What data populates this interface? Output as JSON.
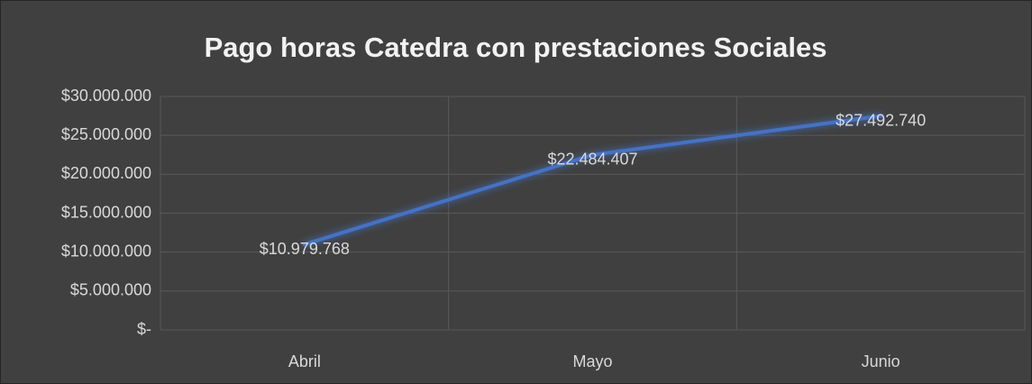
{
  "chart_data": {
    "type": "line",
    "title": "Pago horas Catedra con prestaciones Sociales",
    "categories": [
      "Abril",
      "Mayo",
      "Junio"
    ],
    "values": [
      10979768,
      22484407,
      27492740
    ],
    "value_labels": [
      "$10.979.768",
      "$22.484.407",
      "$27.492.740"
    ],
    "color": "#4472c4",
    "ylim": [
      0,
      30000000
    ],
    "yticks": [
      {
        "value": 0,
        "label": "$-"
      },
      {
        "value": 5000000,
        "label": "$5.000.000"
      },
      {
        "value": 10000000,
        "label": "$10.000.000"
      },
      {
        "value": 15000000,
        "label": "$15.000.000"
      },
      {
        "value": 20000000,
        "label": "$20.000.000"
      },
      {
        "value": 25000000,
        "label": "$25.000.000"
      },
      {
        "value": 30000000,
        "label": "$30.000.000"
      }
    ],
    "grid": true
  }
}
